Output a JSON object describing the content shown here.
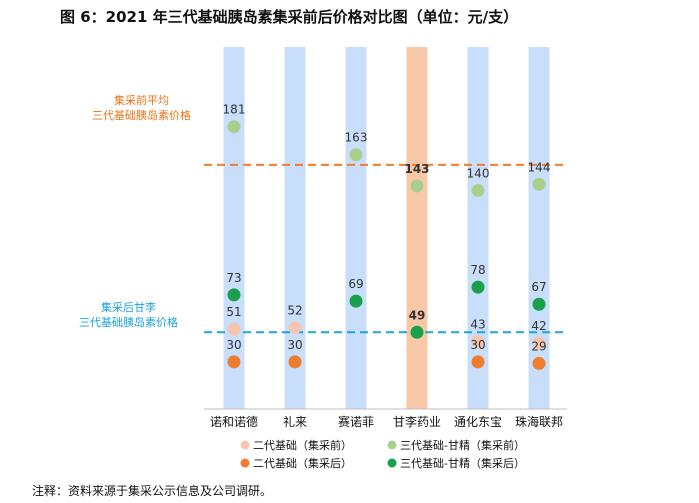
{
  "title": "图 6：2021 年三代基础胰岛素集采前后价格对比图（单位：元/支）",
  "note": "注释：资料来源于集采公示信息及公司调研。",
  "annotations": {
    "pre_avg_line1": "集采前平均",
    "pre_avg_line2": "三代基础胰岛素价格",
    "post_ganli_line1": "集采后甘李",
    "post_ganli_line2": "三代基础胰岛素价格"
  },
  "colors": {
    "bar_default": "#c9defb",
    "bar_highlight": "#f8c8a8",
    "gen2_pre": "#f7c5ae",
    "gen2_post": "#ee7d2f",
    "gen3_pre": "#a8d08d",
    "gen3_post": "#1aa04a",
    "pre_avg_line": "#ee7d2f",
    "post_line": "#1ba8d8"
  },
  "chart_data": {
    "type": "scatter",
    "categories": [
      "诺和诺德",
      "礼来",
      "赛诺菲",
      "甘李药业",
      "通化东宝",
      "珠海联邦"
    ],
    "highlight_category": "甘李药业",
    "series": [
      {
        "name": "二代基础（集采前）",
        "key": "gen2_pre",
        "values": [
          51,
          52,
          null,
          null,
          43,
          42
        ]
      },
      {
        "name": "三代基础-甘精（集采前）",
        "key": "gen3_pre",
        "values": [
          181,
          null,
          163,
          143,
          140,
          144
        ]
      },
      {
        "name": "二代基础（集采后）",
        "key": "gen2_post",
        "values": [
          30,
          30,
          null,
          null,
          30,
          29
        ]
      },
      {
        "name": "三代基础-甘精（集采后）",
        "key": "gen3_post",
        "values": [
          73,
          null,
          69,
          49,
          78,
          67
        ]
      }
    ],
    "reference_lines": [
      {
        "value": 156.5,
        "key": "pre_avg_line"
      },
      {
        "value": 49,
        "key": "post_line"
      }
    ],
    "ylim": [
      0,
      190
    ],
    "legend_position": "bottom"
  }
}
